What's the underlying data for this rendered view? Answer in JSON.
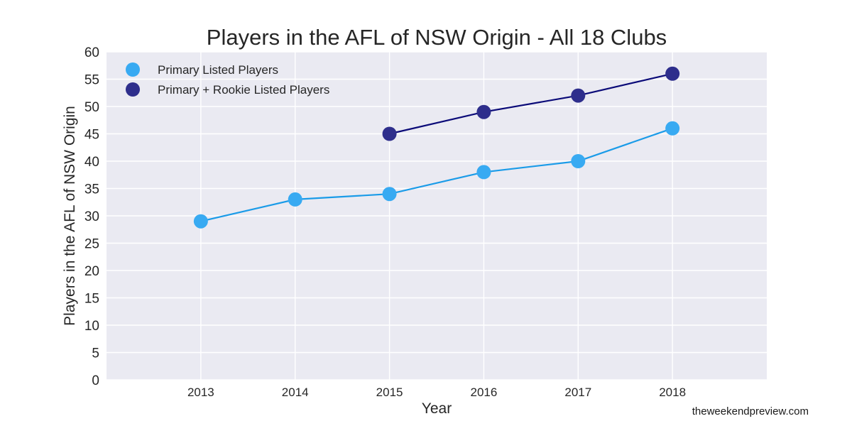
{
  "chart_data": {
    "type": "line",
    "title": "Players in the AFL of NSW Origin - All 18 Clubs",
    "xlabel": "Year",
    "ylabel": "Players in the AFL of NSW Origin",
    "xlim": [
      2012,
      2019
    ],
    "ylim": [
      0,
      60
    ],
    "x_ticks": [
      2013,
      2014,
      2015,
      2016,
      2017,
      2018
    ],
    "y_ticks": [
      0,
      5,
      10,
      15,
      20,
      25,
      30,
      35,
      40,
      45,
      50,
      55,
      60
    ],
    "grid": true,
    "legend_position": "top-left",
    "background_color": "#eaeaf2",
    "series": [
      {
        "name": "Primary Listed Players",
        "x": [
          2013,
          2014,
          2015,
          2016,
          2017,
          2018
        ],
        "values": [
          29,
          33,
          34,
          38,
          40,
          46
        ],
        "line_color": "#1a9be8",
        "marker_color": "#38aaf2"
      },
      {
        "name": "Primary + Rookie Listed Players",
        "x": [
          2015,
          2016,
          2017,
          2018
        ],
        "values": [
          45,
          49,
          52,
          56
        ],
        "line_color": "#0a0a78",
        "marker_color": "#2e2e8c"
      }
    ]
  },
  "watermark": "theweekendpreview.com"
}
